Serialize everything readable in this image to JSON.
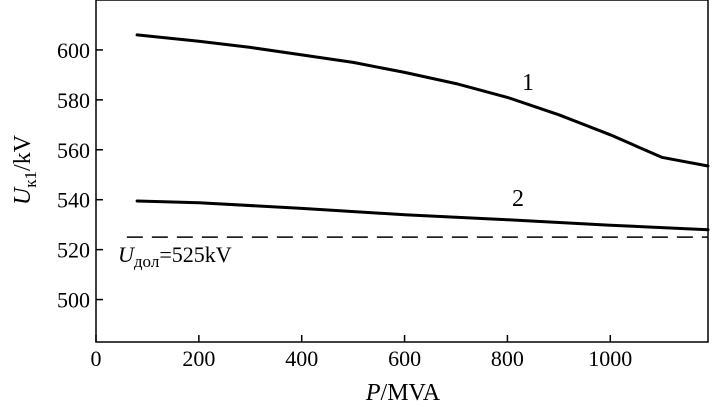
{
  "chart_data": {
    "type": "line",
    "xlabel": {
      "main": "P",
      "unit": "/MVA"
    },
    "ylabel": {
      "main": "U",
      "sub": "к1",
      "unit": "/kV"
    },
    "xlim": [
      0,
      1190
    ],
    "ylim": [
      483,
      620
    ],
    "xticks": [
      0,
      200,
      400,
      600,
      800,
      1000
    ],
    "yticks": [
      500,
      520,
      540,
      560,
      580,
      600
    ],
    "grid": false,
    "series": [
      {
        "name": "1",
        "x": [
          80,
          200,
          300,
          400,
          500,
          600,
          700,
          800,
          900,
          1000,
          1100,
          1190
        ],
        "y": [
          606,
          603.5,
          601,
          598,
          595,
          591,
          586.5,
          581,
          574,
          566,
          557,
          553.5
        ]
      },
      {
        "name": "2",
        "x": [
          80,
          200,
          400,
          600,
          800,
          1000,
          1190
        ],
        "y": [
          539.5,
          538.8,
          536.5,
          534,
          532,
          529.8,
          528
        ]
      }
    ],
    "reference_line": {
      "y": 525,
      "x_range": [
        60,
        1190
      ],
      "style": "dashed",
      "label": {
        "main": "U",
        "sub": "дол",
        "rest": "=525kV"
      }
    }
  }
}
